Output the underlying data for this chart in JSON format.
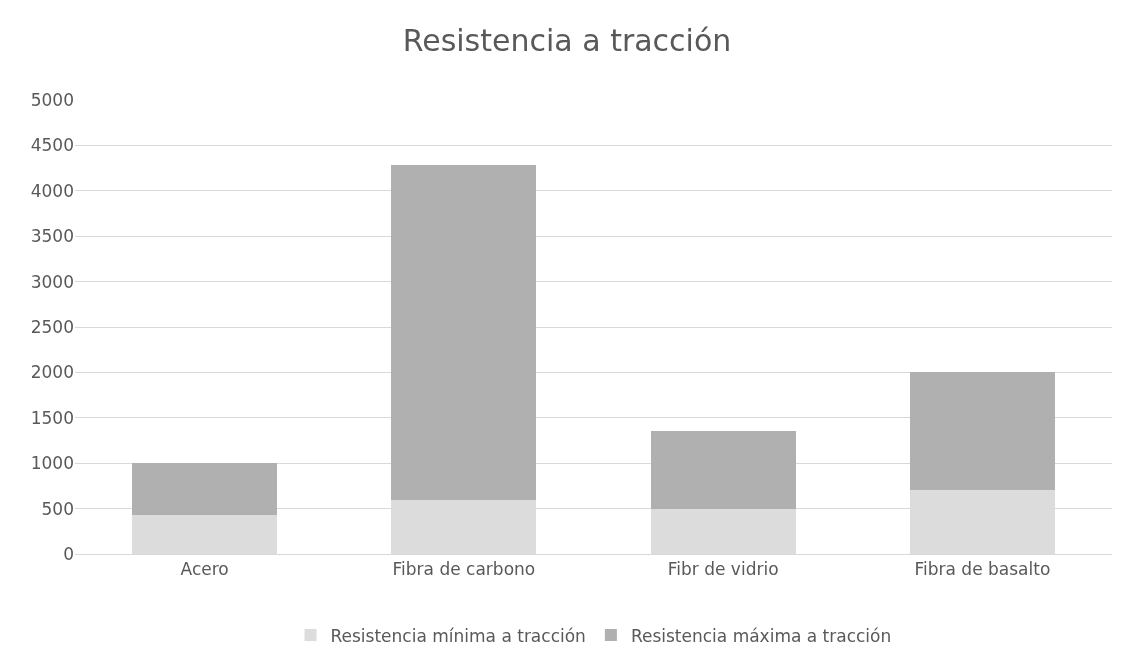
{
  "chart_data": {
    "type": "bar",
    "title": "Resistencia a tracción",
    "stacked": true,
    "categories": [
      "Acero",
      "Fibra de carbono",
      "Fibr de vidrio",
      "Fibra de basalto"
    ],
    "series": [
      {
        "name": "Resistencia mínima a tracción",
        "color": "#dcdcdc",
        "values": [
          430,
          600,
          500,
          700
        ]
      },
      {
        "name": "Resistencia máxima a tracción",
        "color": "#b0b0b0",
        "values": [
          570,
          3680,
          850,
          1300
        ]
      }
    ],
    "ylim": [
      0,
      5000
    ],
    "yticks": [
      0,
      500,
      1000,
      1500,
      2000,
      2500,
      3000,
      3500,
      4000,
      4500,
      5000
    ],
    "grid": "y",
    "legend": "bottom"
  }
}
